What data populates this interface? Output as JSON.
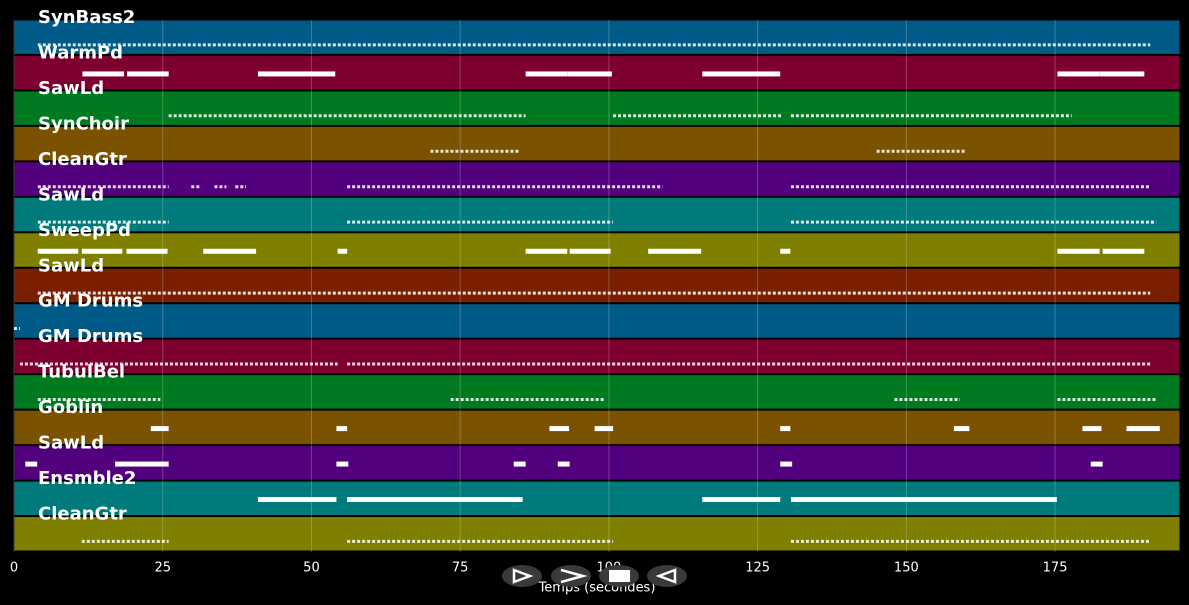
{
  "chart_data": {
    "type": "pianoroll",
    "x_label": "Temps (secondes)",
    "xlim": [
      0,
      196
    ],
    "xticks": [
      0,
      25,
      50,
      75,
      100,
      125,
      150,
      175
    ],
    "grid": true,
    "tracks": [
      {
        "name": "SynBass2",
        "color": "#005a87",
        "dense": true,
        "spans": [
          [
            4,
            191
          ]
        ]
      },
      {
        "name": "WarmPd",
        "color": "#7e0030",
        "dense": false,
        "spans": [
          [
            11.5,
            18.5
          ],
          [
            19,
            26
          ],
          [
            41,
            54
          ],
          [
            86,
            93
          ],
          [
            93,
            100.5
          ],
          [
            115.7,
            128.8
          ],
          [
            175.4,
            182.5
          ],
          [
            182.5,
            190
          ]
        ]
      },
      {
        "name": "SawLd",
        "color": "#007a20",
        "dense": true,
        "spans": [
          [
            26,
            86
          ],
          [
            100.7,
            129
          ],
          [
            130.6,
            177.8
          ]
        ]
      },
      {
        "name": "SynChoir",
        "color": "#7a5200",
        "dense": true,
        "spans": [
          [
            70,
            85
          ],
          [
            145,
            160
          ]
        ]
      },
      {
        "name": "CleanGtr",
        "color": "#53007e",
        "dense": true,
        "spans": [
          [
            4,
            26
          ],
          [
            29.8,
            31.5
          ],
          [
            33.7,
            35.7
          ],
          [
            37.2,
            39
          ],
          [
            56,
            109
          ],
          [
            130.6,
            191
          ]
        ]
      },
      {
        "name": "SawLd",
        "color": "#007a7a",
        "dense": true,
        "spans": [
          [
            4,
            26
          ],
          [
            56,
            100.7
          ],
          [
            130.6,
            192
          ]
        ]
      },
      {
        "name": "SweepPd",
        "color": "#7f7f00",
        "dense": false,
        "spans": [
          [
            4,
            10.8
          ],
          [
            11.4,
            18.2
          ],
          [
            18.9,
            25.8
          ],
          [
            31.8,
            40.7
          ],
          [
            54.4,
            56
          ],
          [
            86,
            93
          ],
          [
            93.4,
            100.3
          ],
          [
            106.6,
            115.5
          ],
          [
            128.8,
            130.5
          ],
          [
            175.4,
            182.5
          ],
          [
            183,
            190
          ]
        ]
      },
      {
        "name": "SawLd",
        "color": "#7a2000",
        "dense": true,
        "spans": [
          [
            4,
            191
          ]
        ]
      },
      {
        "name": "GM Drums",
        "color": "#005a87",
        "dense": true,
        "spans": [
          [
            0,
            1
          ]
        ]
      },
      {
        "name": "GM Drums",
        "color": "#7e0030",
        "dense": true,
        "spans": [
          [
            1,
            54.4
          ],
          [
            56,
            191
          ]
        ]
      },
      {
        "name": "TubulBel",
        "color": "#007a20",
        "dense": true,
        "spans": [
          [
            4,
            24.6
          ],
          [
            73.4,
            99.3
          ],
          [
            148,
            159
          ],
          [
            175.4,
            192
          ]
        ]
      },
      {
        "name": "Goblin",
        "color": "#7a5200",
        "dense": false,
        "spans": [
          [
            23,
            26
          ],
          [
            54.2,
            56
          ],
          [
            90,
            93.3
          ],
          [
            97.6,
            100.7
          ],
          [
            128.8,
            130.5
          ],
          [
            158,
            160.6
          ],
          [
            179.6,
            182.8
          ],
          [
            187,
            192.6
          ]
        ]
      },
      {
        "name": "SawLd",
        "color": "#53007e",
        "dense": false,
        "spans": [
          [
            1.9,
            3.9
          ],
          [
            17,
            26
          ],
          [
            54.2,
            56.2
          ],
          [
            84,
            86
          ],
          [
            91.4,
            93.4
          ],
          [
            128.8,
            130.8
          ],
          [
            181,
            183
          ]
        ]
      },
      {
        "name": "Ensmble2",
        "color": "#007a7a",
        "dense": false,
        "spans": [
          [
            41,
            54.2
          ],
          [
            56,
            85.5
          ],
          [
            115.7,
            128.8
          ],
          [
            130.6,
            175.3
          ]
        ]
      },
      {
        "name": "CleanGtr",
        "color": "#7f7f00",
        "dense": true,
        "spans": [
          [
            11.4,
            26
          ],
          [
            56,
            100.7
          ],
          [
            130.6,
            191
          ]
        ]
      }
    ]
  }
}
